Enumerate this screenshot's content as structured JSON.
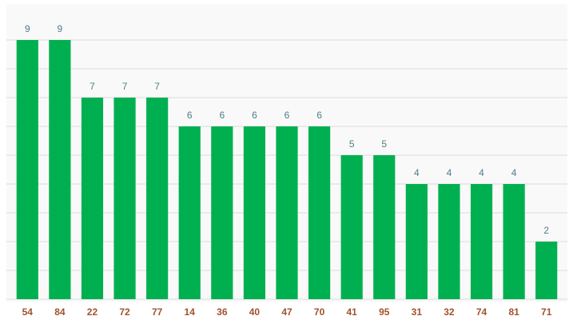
{
  "chart_data": {
    "type": "bar",
    "categories": [
      "54",
      "84",
      "22",
      "72",
      "77",
      "14",
      "36",
      "40",
      "47",
      "70",
      "41",
      "95",
      "31",
      "32",
      "74",
      "81",
      "71"
    ],
    "values": [
      9,
      9,
      7,
      7,
      7,
      6,
      6,
      6,
      6,
      6,
      5,
      5,
      4,
      4,
      4,
      4,
      2
    ],
    "color": "#00b050",
    "ylim": [
      0,
      10
    ],
    "yticks": [
      0,
      1,
      2,
      3,
      4,
      5,
      6,
      7,
      8,
      9
    ],
    "grid": true
  }
}
